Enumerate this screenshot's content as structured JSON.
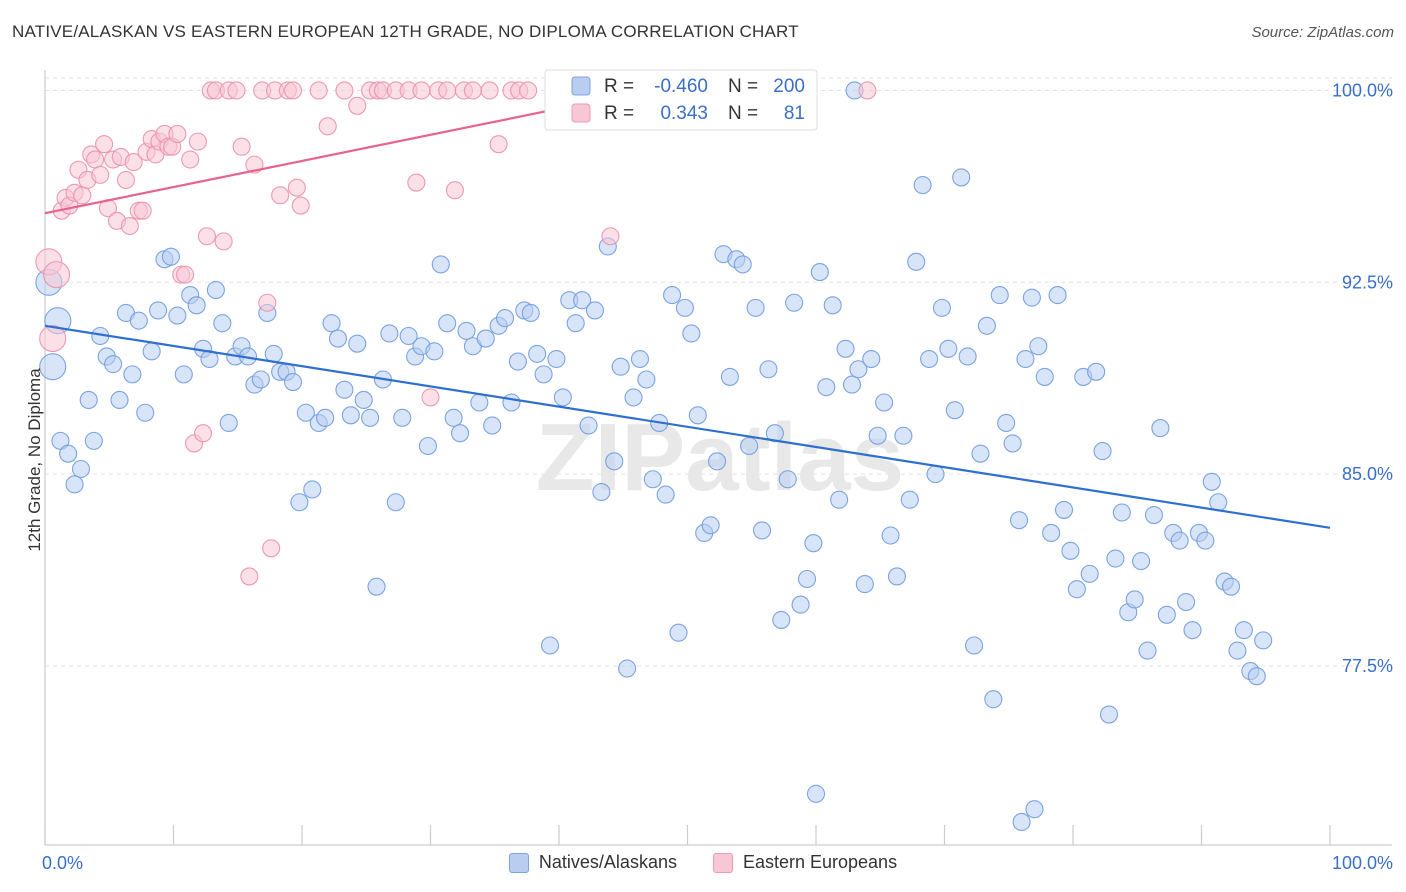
{
  "chart_data": {
    "type": "scatter",
    "title": "NATIVE/ALASKAN VS EASTERN EUROPEAN 12TH GRADE, NO DIPLOMA CORRELATION CHART",
    "source": "Source: ZipAtlas.com",
    "xlabel": "",
    "ylabel": "12th Grade, No Diploma",
    "xlim": [
      0,
      100
    ],
    "ylim": [
      70.5,
      100.8
    ],
    "x_tick_labels": [
      "0.0%",
      "100.0%"
    ],
    "y_ticks": [
      77.5,
      85.0,
      92.5,
      100.0
    ],
    "y_tick_labels": [
      "77.5%",
      "85.0%",
      "92.5%",
      "100.0%"
    ],
    "watermark": "ZIPatlas",
    "legend": {
      "blue": {
        "r_label": "R =",
        "r_value": "-0.460",
        "n_label": "N =",
        "n_value": "200"
      },
      "pink": {
        "r_label": "R =",
        "r_value": "0.343",
        "n_label": "N =",
        "n_value": "81"
      }
    },
    "series": [
      {
        "name": "Natives/Alaskans",
        "color": "#6f9be0",
        "fill": "#b8cdf0",
        "trend": {
          "x": [
            0,
            100
          ],
          "y": [
            90.8,
            82.9
          ]
        },
        "points": [
          [
            0.3,
            92.5
          ],
          [
            0.6,
            89.2
          ],
          [
            1.2,
            86.3
          ],
          [
            1.8,
            85.8
          ],
          [
            2.3,
            84.6
          ],
          [
            2.8,
            85.2
          ],
          [
            3.4,
            87.9
          ],
          [
            3.8,
            86.3
          ],
          [
            4.3,
            90.4
          ],
          [
            4.8,
            89.6
          ],
          [
            5.3,
            89.3
          ],
          [
            5.8,
            87.9
          ],
          [
            6.3,
            91.3
          ],
          [
            6.8,
            88.9
          ],
          [
            7.3,
            91.0
          ],
          [
            7.8,
            87.4
          ],
          [
            8.3,
            89.8
          ],
          [
            8.8,
            91.4
          ],
          [
            9.3,
            93.4
          ],
          [
            9.8,
            93.5
          ],
          [
            10.3,
            91.2
          ],
          [
            10.8,
            88.9
          ],
          [
            11.3,
            92.0
          ],
          [
            11.8,
            91.6
          ],
          [
            12.3,
            89.9
          ],
          [
            12.8,
            89.5
          ],
          [
            13.3,
            92.2
          ],
          [
            13.8,
            90.9
          ],
          [
            14.3,
            87.0
          ],
          [
            14.8,
            89.6
          ],
          [
            15.3,
            90.0
          ],
          [
            15.8,
            89.6
          ],
          [
            16.3,
            88.5
          ],
          [
            16.8,
            88.7
          ],
          [
            17.3,
            91.3
          ],
          [
            17.8,
            89.7
          ],
          [
            18.3,
            89.0
          ],
          [
            18.8,
            89.0
          ],
          [
            19.3,
            88.6
          ],
          [
            19.8,
            83.9
          ],
          [
            20.3,
            87.4
          ],
          [
            20.8,
            84.4
          ],
          [
            21.3,
            87.0
          ],
          [
            21.8,
            87.2
          ],
          [
            22.3,
            90.9
          ],
          [
            22.8,
            90.3
          ],
          [
            23.3,
            88.3
          ],
          [
            23.8,
            87.3
          ],
          [
            24.3,
            90.1
          ],
          [
            24.8,
            87.9
          ],
          [
            25.3,
            87.2
          ],
          [
            25.8,
            80.6
          ],
          [
            26.3,
            88.7
          ],
          [
            26.8,
            90.5
          ],
          [
            27.3,
            83.9
          ],
          [
            27.8,
            87.2
          ],
          [
            28.3,
            90.4
          ],
          [
            28.8,
            89.6
          ],
          [
            29.3,
            90.0
          ],
          [
            29.8,
            86.1
          ],
          [
            30.3,
            89.8
          ],
          [
            30.8,
            93.2
          ],
          [
            31.3,
            90.9
          ],
          [
            31.8,
            87.2
          ],
          [
            32.3,
            86.6
          ],
          [
            32.8,
            90.6
          ],
          [
            33.3,
            90.0
          ],
          [
            33.8,
            87.8
          ],
          [
            34.3,
            90.3
          ],
          [
            34.8,
            86.9
          ],
          [
            35.3,
            90.8
          ],
          [
            35.8,
            91.1
          ],
          [
            36.3,
            87.8
          ],
          [
            36.8,
            89.4
          ],
          [
            37.3,
            91.4
          ],
          [
            37.8,
            91.3
          ],
          [
            38.3,
            89.7
          ],
          [
            38.8,
            88.9
          ],
          [
            39.3,
            78.3
          ],
          [
            39.8,
            89.5
          ],
          [
            40.3,
            88.0
          ],
          [
            40.8,
            91.8
          ],
          [
            41.3,
            90.9
          ],
          [
            41.8,
            91.8
          ],
          [
            42.3,
            86.9
          ],
          [
            42.8,
            91.4
          ],
          [
            43.3,
            84.3
          ],
          [
            43.8,
            93.9
          ],
          [
            44.3,
            85.5
          ],
          [
            44.8,
            89.2
          ],
          [
            45.3,
            77.4
          ],
          [
            45.8,
            88.0
          ],
          [
            46.3,
            89.5
          ],
          [
            46.8,
            88.7
          ],
          [
            47.3,
            84.8
          ],
          [
            47.8,
            87.0
          ],
          [
            48.3,
            84.2
          ],
          [
            48.8,
            92.0
          ],
          [
            49.3,
            78.8
          ],
          [
            49.8,
            91.5
          ],
          [
            50.3,
            90.5
          ],
          [
            50.8,
            87.3
          ],
          [
            51.3,
            82.7
          ],
          [
            51.8,
            83.0
          ],
          [
            52.3,
            85.5
          ],
          [
            52.8,
            93.6
          ],
          [
            53.3,
            88.8
          ],
          [
            53.8,
            93.4
          ],
          [
            54.3,
            93.2
          ],
          [
            54.8,
            86.1
          ],
          [
            55.3,
            91.5
          ],
          [
            55.8,
            82.8
          ],
          [
            56.3,
            89.1
          ],
          [
            56.8,
            86.6
          ],
          [
            57.3,
            79.3
          ],
          [
            57.8,
            84.8
          ],
          [
            58.3,
            91.7
          ],
          [
            58.8,
            79.9
          ],
          [
            59.3,
            80.9
          ],
          [
            59.8,
            82.3
          ],
          [
            60.3,
            92.9
          ],
          [
            60.8,
            88.4
          ],
          [
            61.3,
            91.6
          ],
          [
            61.8,
            84.0
          ],
          [
            62.3,
            89.9
          ],
          [
            62.8,
            88.5
          ],
          [
            63.3,
            89.1
          ],
          [
            63.8,
            80.7
          ],
          [
            64.3,
            89.5
          ],
          [
            64.8,
            86.5
          ],
          [
            65.3,
            87.8
          ],
          [
            65.8,
            82.6
          ],
          [
            66.3,
            81.0
          ],
          [
            66.8,
            86.5
          ],
          [
            67.3,
            84.0
          ],
          [
            67.8,
            93.3
          ],
          [
            68.3,
            96.3
          ],
          [
            68.8,
            89.5
          ],
          [
            69.3,
            85.0
          ],
          [
            69.8,
            91.5
          ],
          [
            70.3,
            89.9
          ],
          [
            70.8,
            87.5
          ],
          [
            71.3,
            96.6
          ],
          [
            71.8,
            89.6
          ],
          [
            72.3,
            78.3
          ],
          [
            72.8,
            85.8
          ],
          [
            73.3,
            90.8
          ],
          [
            73.8,
            76.2
          ],
          [
            74.3,
            92.0
          ],
          [
            74.8,
            87.0
          ],
          [
            75.3,
            86.2
          ],
          [
            75.8,
            83.2
          ],
          [
            76.3,
            89.5
          ],
          [
            76.8,
            91.9
          ],
          [
            77.3,
            90.0
          ],
          [
            77.8,
            88.8
          ],
          [
            78.3,
            82.7
          ],
          [
            78.8,
            92.0
          ],
          [
            79.3,
            83.6
          ],
          [
            79.8,
            82.0
          ],
          [
            80.3,
            80.5
          ],
          [
            80.8,
            88.8
          ],
          [
            81.3,
            81.1
          ],
          [
            81.8,
            89.0
          ],
          [
            82.3,
            85.9
          ],
          [
            82.8,
            75.6
          ],
          [
            83.3,
            81.7
          ],
          [
            83.8,
            83.5
          ],
          [
            84.3,
            79.6
          ],
          [
            84.8,
            80.1
          ],
          [
            85.3,
            81.6
          ],
          [
            85.8,
            78.1
          ],
          [
            86.3,
            83.4
          ],
          [
            86.8,
            86.8
          ],
          [
            87.3,
            79.5
          ],
          [
            87.8,
            82.7
          ],
          [
            88.3,
            82.4
          ],
          [
            88.8,
            80.0
          ],
          [
            89.3,
            78.9
          ],
          [
            89.8,
            82.7
          ],
          [
            90.3,
            82.4
          ],
          [
            90.8,
            84.7
          ],
          [
            91.3,
            83.9
          ],
          [
            91.8,
            80.8
          ],
          [
            92.3,
            80.6
          ],
          [
            92.8,
            78.1
          ],
          [
            93.3,
            78.9
          ],
          [
            93.8,
            77.3
          ],
          [
            94.3,
            77.1
          ],
          [
            94.8,
            78.5
          ],
          [
            1.0,
            91.0
          ],
          [
            60.0,
            72.5
          ],
          [
            76.0,
            71.4
          ],
          [
            77.0,
            71.9
          ],
          [
            63.0,
            100.0
          ],
          [
            58.0,
            99.0
          ]
        ]
      },
      {
        "name": "Eastern Europeans",
        "color": "#ec8fac",
        "fill": "#f8c7d6",
        "trend": {
          "x": [
            0,
            45
          ],
          "y": [
            95.2,
            99.8
          ]
        },
        "points": [
          [
            0.3,
            93.3
          ],
          [
            0.6,
            90.3
          ],
          [
            0.9,
            92.8
          ],
          [
            1.3,
            95.3
          ],
          [
            1.6,
            95.8
          ],
          [
            1.9,
            95.5
          ],
          [
            2.3,
            96.0
          ],
          [
            2.6,
            96.9
          ],
          [
            2.9,
            95.9
          ],
          [
            3.3,
            96.5
          ],
          [
            3.6,
            97.5
          ],
          [
            3.9,
            97.3
          ],
          [
            4.3,
            96.7
          ],
          [
            4.6,
            97.9
          ],
          [
            4.9,
            95.4
          ],
          [
            5.3,
            97.3
          ],
          [
            5.6,
            94.9
          ],
          [
            5.9,
            97.4
          ],
          [
            6.3,
            96.5
          ],
          [
            6.6,
            94.7
          ],
          [
            6.9,
            97.2
          ],
          [
            7.3,
            95.3
          ],
          [
            7.6,
            95.3
          ],
          [
            7.9,
            97.6
          ],
          [
            8.3,
            98.1
          ],
          [
            8.6,
            97.5
          ],
          [
            8.9,
            98.0
          ],
          [
            9.3,
            98.3
          ],
          [
            9.6,
            97.8
          ],
          [
            9.9,
            97.8
          ],
          [
            10.3,
            98.3
          ],
          [
            10.6,
            92.8
          ],
          [
            10.9,
            92.8
          ],
          [
            11.3,
            97.3
          ],
          [
            11.6,
            86.2
          ],
          [
            11.9,
            98.0
          ],
          [
            12.3,
            86.6
          ],
          [
            12.6,
            94.3
          ],
          [
            12.9,
            100.0
          ],
          [
            13.3,
            100.0
          ],
          [
            13.9,
            94.1
          ],
          [
            14.3,
            100.0
          ],
          [
            14.9,
            100.0
          ],
          [
            15.3,
            97.8
          ],
          [
            15.9,
            81.0
          ],
          [
            16.3,
            97.1
          ],
          [
            16.9,
            100.0
          ],
          [
            17.3,
            91.7
          ],
          [
            17.6,
            82.1
          ],
          [
            17.9,
            100.0
          ],
          [
            18.3,
            95.9
          ],
          [
            18.9,
            100.0
          ],
          [
            19.3,
            100.0
          ],
          [
            19.6,
            96.2
          ],
          [
            19.9,
            95.5
          ],
          [
            21.3,
            100.0
          ],
          [
            22.0,
            98.6
          ],
          [
            23.3,
            100.0
          ],
          [
            24.3,
            99.4
          ],
          [
            25.3,
            100.0
          ],
          [
            25.9,
            100.0
          ],
          [
            26.3,
            100.0
          ],
          [
            27.3,
            100.0
          ],
          [
            28.3,
            100.0
          ],
          [
            28.9,
            96.4
          ],
          [
            29.3,
            100.0
          ],
          [
            30.0,
            88.0
          ],
          [
            30.6,
            100.0
          ],
          [
            31.3,
            100.0
          ],
          [
            31.9,
            96.1
          ],
          [
            32.6,
            100.0
          ],
          [
            33.3,
            100.0
          ],
          [
            34.6,
            100.0
          ],
          [
            35.3,
            97.9
          ],
          [
            36.3,
            100.0
          ],
          [
            36.9,
            100.0
          ],
          [
            37.6,
            100.0
          ],
          [
            44.0,
            94.3
          ],
          [
            64.0,
            100.0
          ],
          [
            47.0,
            100.0
          ],
          [
            48.0,
            100.0
          ]
        ]
      }
    ]
  },
  "header": {
    "title": "NATIVE/ALASKAN VS EASTERN EUROPEAN 12TH GRADE, NO DIPLOMA CORRELATION CHART",
    "source": "Source: ZipAtlas.com"
  },
  "legend_bottom": {
    "blue_label": "Natives/Alaskans",
    "pink_label": "Eastern Europeans"
  }
}
